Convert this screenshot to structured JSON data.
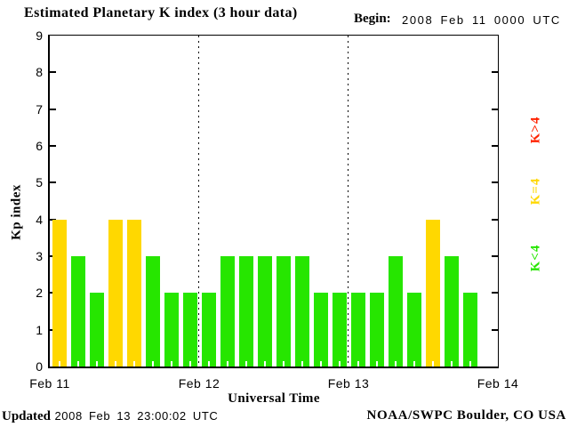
{
  "title": "Estimated Planetary K index (3 hour data)",
  "begin": {
    "label": "Begin:",
    "value": "2008 Feb 11 0000 UTC"
  },
  "footer": {
    "updated_label": "Updated",
    "updated_value": "2008 Feb 13 23:00:02 UTC",
    "credit": "NOAA/SWPC Boulder, CO USA"
  },
  "chart_data": {
    "type": "bar",
    "title": "Estimated Planetary K index (3 hour data)",
    "xlabel": "Universal Time",
    "ylabel": "Kp index",
    "ylim": [
      0,
      9
    ],
    "y_ticks": [
      0,
      1,
      2,
      3,
      4,
      5,
      6,
      7,
      8,
      9
    ],
    "x_ticks": [
      "Feb 11",
      "Feb 12",
      "Feb 13",
      "Feb 14"
    ],
    "interval_hours": 3,
    "slots_per_day": 8,
    "grid": "dotted vertical lines at day boundaries",
    "days": [
      {
        "date": "2008 Feb 11",
        "kp": [
          4,
          3,
          2,
          4,
          4,
          3,
          2,
          2
        ]
      },
      {
        "date": "2008 Feb 12",
        "kp": [
          2,
          3,
          3,
          3,
          3,
          3,
          2,
          2
        ]
      },
      {
        "date": "2008 Feb 13",
        "kp": [
          2,
          2,
          3,
          2,
          4,
          3,
          2
        ]
      }
    ],
    "colors": {
      "gt4": "#ff2200",
      "eq4": "#ffd800",
      "lt4": "#26e600"
    },
    "legend": [
      {
        "label": "K>4",
        "color": "#ff2200"
      },
      {
        "label": "K=4",
        "color": "#ffd800"
      },
      {
        "label": "K<4",
        "color": "#26e600"
      }
    ],
    "legend_position": "right, rotated 90deg"
  }
}
